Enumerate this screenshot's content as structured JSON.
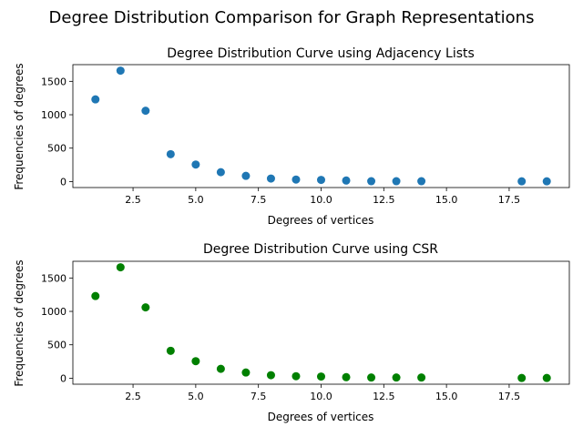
{
  "figure_title": "Degree Distribution Comparison for Graph Representations",
  "chart_data": [
    {
      "type": "scatter",
      "title": "Degree Distribution Curve using Adjacency Lists",
      "xlabel": "Degrees of vertices",
      "ylabel": "Frequencies of degrees",
      "color": "#1f77b4",
      "xlim": [
        0.1,
        19.9
      ],
      "ylim": [
        -90,
        1750
      ],
      "xticks": [
        2.5,
        5.0,
        7.5,
        10.0,
        12.5,
        15.0,
        17.5
      ],
      "xtick_labels": [
        "2.5",
        "5.0",
        "7.5",
        "10.0",
        "12.5",
        "15.0",
        "17.5"
      ],
      "yticks": [
        0,
        500,
        1000,
        1500
      ],
      "ytick_labels": [
        "0",
        "500",
        "1000",
        "1500"
      ],
      "grid": false,
      "x": [
        1,
        2,
        3,
        4,
        5,
        6,
        7,
        8,
        9,
        10,
        11,
        12,
        13,
        14,
        18,
        19
      ],
      "y": [
        1230,
        1660,
        1060,
        410,
        255,
        140,
        85,
        45,
        30,
        25,
        15,
        5,
        5,
        5,
        3,
        3
      ]
    },
    {
      "type": "scatter",
      "title": "Degree Distribution Curve using CSR",
      "xlabel": "Degrees of vertices",
      "ylabel": "Frequencies of degrees",
      "color": "#008000",
      "xlim": [
        0.1,
        19.9
      ],
      "ylim": [
        -90,
        1750
      ],
      "xticks": [
        2.5,
        5.0,
        7.5,
        10.0,
        12.5,
        15.0,
        17.5
      ],
      "xtick_labels": [
        "2.5",
        "5.0",
        "7.5",
        "10.0",
        "12.5",
        "15.0",
        "17.5"
      ],
      "yticks": [
        0,
        500,
        1000,
        1500
      ],
      "ytick_labels": [
        "0",
        "500",
        "1000",
        "1500"
      ],
      "grid": false,
      "x": [
        1,
        2,
        3,
        4,
        5,
        6,
        7,
        8,
        9,
        10,
        11,
        12,
        13,
        14,
        18,
        19
      ],
      "y": [
        1230,
        1660,
        1060,
        410,
        255,
        140,
        85,
        45,
        30,
        25,
        15,
        10,
        10,
        10,
        3,
        3
      ]
    }
  ]
}
